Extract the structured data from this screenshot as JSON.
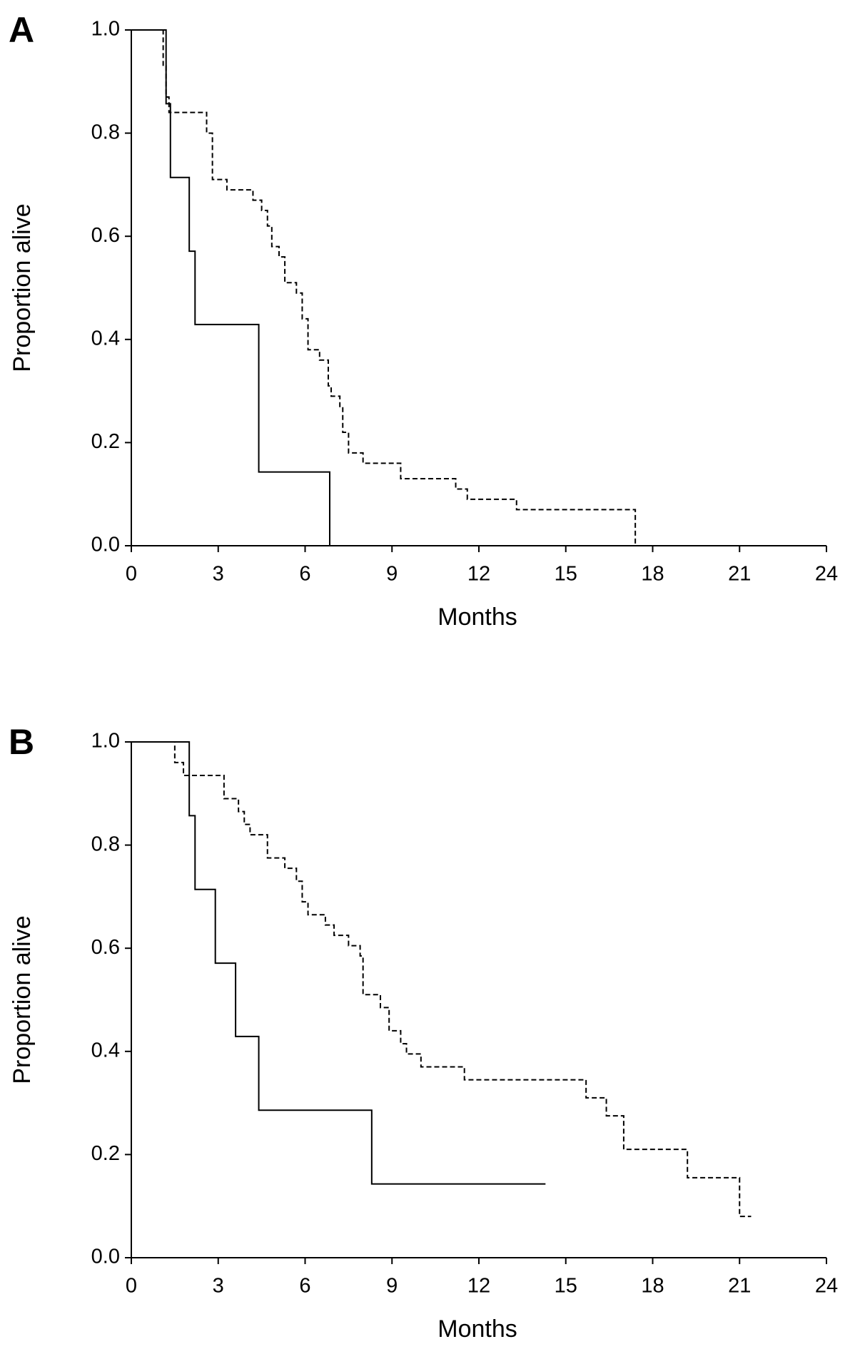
{
  "chart_data": [
    {
      "type": "step",
      "label": "A",
      "xlabel": "Months",
      "ylabel": "Proportion alive",
      "xlim": [
        0,
        24
      ],
      "xticks": [
        0,
        3,
        6,
        9,
        12,
        15,
        18,
        21,
        24
      ],
      "ylim": [
        0,
        1
      ],
      "yticks": [
        {
          "value": 0,
          "label": "0.0"
        },
        0.2,
        0.4,
        0.6,
        0.8,
        {
          "value": 1,
          "label": "1.0"
        }
      ],
      "series": [
        {
          "color": "#000000",
          "dash": false,
          "x": [
            0,
            1.2,
            1.35,
            2.0,
            2.2,
            4.4,
            6.85
          ],
          "values": [
            1.0,
            0.857,
            0.714,
            0.571,
            0.429,
            0.143,
            0
          ]
        },
        {
          "color": "#000000",
          "dash": true,
          "x": [
            0,
            1.1,
            1.2,
            1.3,
            1.5,
            2.6,
            2.8,
            3.3,
            4.2,
            4.5,
            4.7,
            4.85,
            5.1,
            5.3,
            5.7,
            5.9,
            6.1,
            6.5,
            6.8,
            6.9,
            7.2,
            7.3,
            7.5,
            8.0,
            9.3,
            11.2,
            11.6,
            13.3,
            17.4
          ],
          "values": [
            1.0,
            0.93,
            0.87,
            0.84,
            0.84,
            0.8,
            0.71,
            0.69,
            0.67,
            0.65,
            0.62,
            0.58,
            0.56,
            0.51,
            0.49,
            0.44,
            0.38,
            0.36,
            0.31,
            0.29,
            0.27,
            0.22,
            0.18,
            0.16,
            0.13,
            0.11,
            0.09,
            0.07,
            0
          ]
        }
      ]
    },
    {
      "type": "step",
      "label": "B",
      "xlabel": "Months",
      "ylabel": "Proportion alive",
      "xlim": [
        0,
        24
      ],
      "xticks": [
        0,
        3,
        6,
        9,
        12,
        15,
        18,
        21,
        24
      ],
      "ylim": [
        0,
        1
      ],
      "yticks": [
        {
          "value": 0,
          "label": "0.0"
        },
        0.2,
        0.4,
        0.6,
        0.8,
        {
          "value": 1,
          "label": "1.0"
        }
      ],
      "series": [
        {
          "color": "#000000",
          "dash": false,
          "x": [
            0,
            2.0,
            2.2,
            2.9,
            3.6,
            4.4,
            8.3,
            14.3
          ],
          "values": [
            1.0,
            0.857,
            0.714,
            0.571,
            0.429,
            0.286,
            0.143,
            0.143
          ]
        },
        {
          "color": "#000000",
          "dash": true,
          "x": [
            0,
            1.4,
            1.5,
            1.8,
            3.2,
            3.7,
            3.9,
            4.1,
            4.7,
            5.3,
            5.7,
            5.9,
            6.1,
            6.7,
            7.0,
            7.5,
            7.9,
            8.0,
            8.6,
            8.9,
            9.3,
            9.5,
            10.0,
            11.5,
            15.7,
            16.4,
            17.0,
            19.2,
            21.0,
            21.4
          ],
          "values": [
            1.0,
            1.0,
            0.96,
            0.935,
            0.89,
            0.865,
            0.84,
            0.82,
            0.775,
            0.755,
            0.73,
            0.69,
            0.665,
            0.645,
            0.625,
            0.605,
            0.585,
            0.51,
            0.485,
            0.44,
            0.415,
            0.395,
            0.37,
            0.345,
            0.31,
            0.275,
            0.21,
            0.155,
            0.08,
            0.08
          ]
        }
      ]
    }
  ]
}
